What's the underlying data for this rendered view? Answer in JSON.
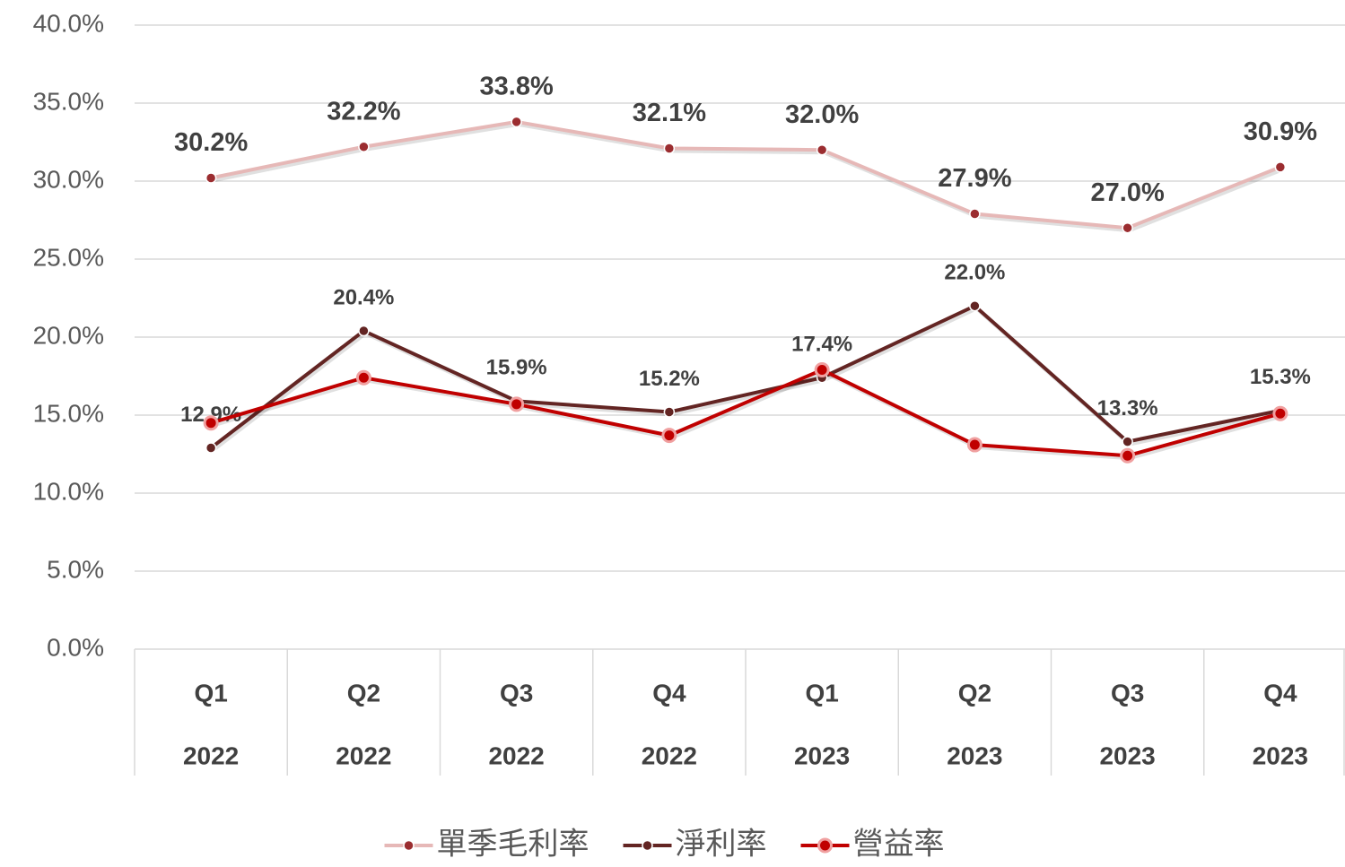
{
  "chart_data": {
    "type": "line",
    "categories": [
      [
        "Q1",
        "2022"
      ],
      [
        "Q2",
        "2022"
      ],
      [
        "Q3",
        "2022"
      ],
      [
        "Q4",
        "2022"
      ],
      [
        "Q1",
        "2023"
      ],
      [
        "Q2",
        "2023"
      ],
      [
        "Q3",
        "2023"
      ],
      [
        "Q4",
        "2023"
      ]
    ],
    "ylim": [
      0,
      40
    ],
    "yticks": [
      {
        "value": 0,
        "label": "0.0%"
      },
      {
        "value": 5,
        "label": "5.0%"
      },
      {
        "value": 10,
        "label": "10.0%"
      },
      {
        "value": 15,
        "label": "15.0%"
      },
      {
        "value": 20,
        "label": "20.0%"
      },
      {
        "value": 25,
        "label": "25.0%"
      },
      {
        "value": 30,
        "label": "30.0%"
      },
      {
        "value": 35,
        "label": "35.0%"
      },
      {
        "value": 40,
        "label": "40.0%"
      }
    ],
    "grid": true,
    "legend": "bottom",
    "series": [
      {
        "name": "單季毛利率",
        "color": "#e6b8b7",
        "marker_color": "#9b2d30",
        "values": [
          30.2,
          32.2,
          33.8,
          32.1,
          32.0,
          27.9,
          27.0,
          30.9
        ],
        "value_labels": [
          "30.2%",
          "32.2%",
          "33.8%",
          "32.1%",
          "32.0%",
          "27.9%",
          "27.0%",
          "30.9%"
        ]
      },
      {
        "name": "淨利率",
        "color": "#632523",
        "marker_color": "#632523",
        "values": [
          12.9,
          20.4,
          15.9,
          15.2,
          17.4,
          22.0,
          13.3,
          15.3
        ],
        "value_labels": [
          "12.9%",
          "20.4%",
          "15.9%",
          "15.2%",
          "17.4%",
          "22.0%",
          "13.3%",
          "15.3%"
        ]
      },
      {
        "name": "營益率",
        "color": "#c00000",
        "marker_color": "#c00000",
        "values": [
          14.5,
          17.4,
          15.7,
          13.7,
          17.9,
          13.1,
          12.4,
          15.1
        ]
      }
    ]
  }
}
